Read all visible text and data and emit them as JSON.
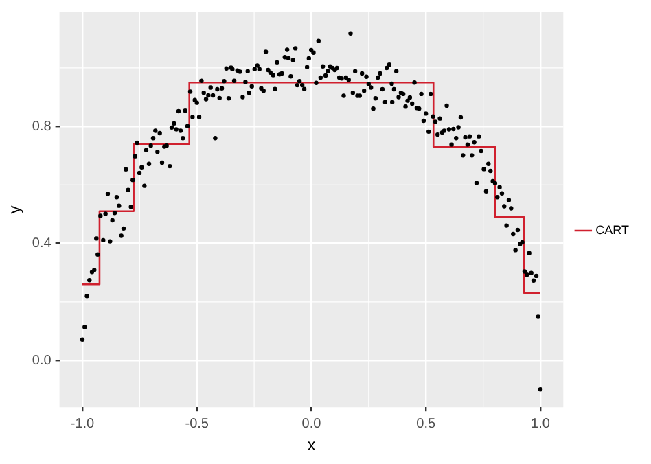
{
  "chart_data": {
    "type": "scatter",
    "xlabel": "x",
    "ylabel": "y",
    "xlim": [
      -1.1,
      1.1
    ],
    "ylim": [
      -0.16,
      1.19
    ],
    "xticks": [
      {
        "value": -1,
        "label": "-1.0"
      },
      {
        "value": -0.5,
        "label": "-0.5"
      },
      {
        "value": 0,
        "label": "0.0"
      },
      {
        "value": 0.5,
        "label": "0.5"
      },
      {
        "value": 1,
        "label": "1.0"
      }
    ],
    "yticks": [
      {
        "value": 0,
        "label": "0.0"
      },
      {
        "value": 0.4,
        "label": "0.4"
      },
      {
        "value": 0.8,
        "label": "0.8"
      }
    ],
    "grid": true,
    "legend": "right",
    "series": [
      {
        "type": "scatter",
        "color": "#000000",
        "marker": "circle",
        "x": [
          -1.0,
          -0.99,
          -0.98,
          -0.969,
          -0.958,
          -0.948,
          -0.939,
          -0.933,
          -0.921,
          -0.909,
          -0.899,
          -0.889,
          -0.879,
          -0.869,
          -0.859,
          -0.85,
          -0.84,
          -0.83,
          -0.82,
          -0.81,
          -0.8,
          -0.788,
          -0.78,
          -0.77,
          -0.761,
          -0.751,
          -0.741,
          -0.729,
          -0.721,
          -0.709,
          -0.701,
          -0.691,
          -0.681,
          -0.672,
          -0.662,
          -0.652,
          -0.642,
          -0.632,
          -0.618,
          -0.61,
          -0.6,
          -0.59,
          -0.58,
          -0.571,
          -0.561,
          -0.551,
          -0.541,
          -0.529,
          -0.519,
          -0.509,
          -0.5,
          -0.49,
          -0.48,
          -0.47,
          -0.46,
          -0.45,
          -0.44,
          -0.43,
          -0.42,
          -0.411,
          -0.401,
          -0.391,
          -0.381,
          -0.371,
          -0.361,
          -0.351,
          -0.345,
          -0.337,
          -0.323,
          -0.312,
          -0.3,
          -0.288,
          -0.278,
          -0.272,
          -0.26,
          -0.248,
          -0.236,
          -0.227,
          -0.219,
          -0.209,
          -0.199,
          -0.189,
          -0.179,
          -0.167,
          -0.159,
          -0.15,
          -0.139,
          -0.129,
          -0.116,
          -0.106,
          -0.1,
          -0.09,
          -0.08,
          -0.07,
          -0.062,
          -0.052,
          -0.04,
          -0.031,
          -0.019,
          -0.011,
          -0.001,
          0.009,
          0.021,
          0.031,
          0.04,
          0.05,
          0.062,
          0.072,
          0.082,
          0.092,
          0.102,
          0.112,
          0.122,
          0.132,
          0.141,
          0.151,
          0.163,
          0.171,
          0.181,
          0.191,
          0.201,
          0.211,
          0.221,
          0.23,
          0.24,
          0.25,
          0.26,
          0.27,
          0.28,
          0.29,
          0.3,
          0.31,
          0.322,
          0.329,
          0.34,
          0.351,
          0.353,
          0.361,
          0.371,
          0.381,
          0.391,
          0.401,
          0.411,
          0.42,
          0.43,
          0.44,
          0.45,
          0.46,
          0.47,
          0.48,
          0.49,
          0.5,
          0.512,
          0.521,
          0.531,
          0.541,
          0.551,
          0.561,
          0.571,
          0.58,
          0.591,
          0.601,
          0.612,
          0.62,
          0.632,
          0.642,
          0.652,
          0.662,
          0.672,
          0.682,
          0.691,
          0.701,
          0.711,
          0.721,
          0.731,
          0.741,
          0.753,
          0.763,
          0.773,
          0.782,
          0.792,
          0.802,
          0.812,
          0.822,
          0.832,
          0.842,
          0.852,
          0.862,
          0.872,
          0.881,
          0.891,
          0.901,
          0.911,
          0.921,
          0.931,
          0.941,
          0.951,
          0.96,
          0.97,
          0.982,
          0.99,
          1.0
        ],
        "values": [
          0.071,
          0.114,
          0.22,
          0.274,
          0.302,
          0.309,
          0.417,
          0.362,
          0.494,
          0.411,
          0.501,
          0.57,
          0.407,
          0.479,
          0.504,
          0.558,
          0.529,
          0.426,
          0.451,
          0.653,
          0.583,
          0.525,
          0.617,
          0.698,
          0.744,
          0.641,
          0.66,
          0.597,
          0.719,
          0.672,
          0.734,
          0.76,
          0.785,
          0.713,
          0.777,
          0.676,
          0.731,
          0.734,
          0.664,
          0.796,
          0.81,
          0.79,
          0.852,
          0.785,
          0.76,
          0.854,
          0.801,
          0.919,
          0.832,
          0.89,
          0.881,
          0.832,
          0.956,
          0.915,
          0.893,
          0.906,
          0.933,
          0.906,
          0.76,
          0.927,
          0.897,
          0.93,
          0.955,
          0.998,
          0.896,
          1.001,
          0.996,
          0.956,
          0.991,
          0.987,
          0.9,
          0.952,
          0.989,
          0.915,
          0.937,
          0.996,
          1.008,
          0.996,
          0.93,
          0.922,
          1.055,
          0.993,
          0.984,
          0.975,
          0.928,
          1.019,
          0.978,
          0.981,
          1.037,
          1.062,
          1.033,
          0.971,
          1.027,
          1.067,
          0.941,
          0.955,
          0.941,
          0.928,
          1.003,
          1.033,
          1.061,
          1.052,
          0.949,
          1.092,
          0.967,
          1.005,
          0.974,
          0.989,
          1.005,
          1.0,
          0.993,
          1.0,
          0.967,
          0.964,
          0.905,
          0.967,
          0.959,
          1.118,
          0.915,
          0.989,
          0.905,
          0.905,
          0.981,
          0.922,
          0.97,
          0.945,
          0.933,
          0.861,
          0.896,
          0.967,
          0.981,
          0.927,
          0.883,
          1.0,
          1.011,
          0.946,
          0.883,
          0.927,
          0.989,
          0.9,
          0.915,
          0.911,
          0.868,
          0.888,
          0.899,
          0.878,
          0.95,
          0.863,
          0.861,
          0.911,
          0.819,
          0.844,
          0.782,
          0.911,
          0.834,
          0.816,
          0.772,
          0.827,
          0.779,
          0.785,
          0.871,
          0.79,
          0.738,
          0.791,
          0.76,
          0.797,
          0.831,
          0.701,
          0.763,
          0.738,
          0.766,
          0.701,
          0.746,
          0.607,
          0.766,
          0.716,
          0.654,
          0.578,
          0.672,
          0.648,
          0.613,
          0.606,
          0.558,
          0.592,
          0.571,
          0.527,
          0.461,
          0.548,
          0.52,
          0.432,
          0.377,
          0.446,
          0.398,
          0.404,
          0.304,
          0.293,
          0.367,
          0.299,
          0.273,
          0.289,
          0.149,
          -0.099
        ]
      },
      {
        "type": "step",
        "name": "CART",
        "color": "#d0202e",
        "x": [
          -1.0,
          -0.925,
          -0.776,
          -0.533,
          0.533,
          0.802,
          0.929,
          1.0
        ],
        "values": [
          0.26,
          0.51,
          0.74,
          0.95,
          0.73,
          0.49,
          0.23,
          0.23
        ]
      }
    ]
  }
}
